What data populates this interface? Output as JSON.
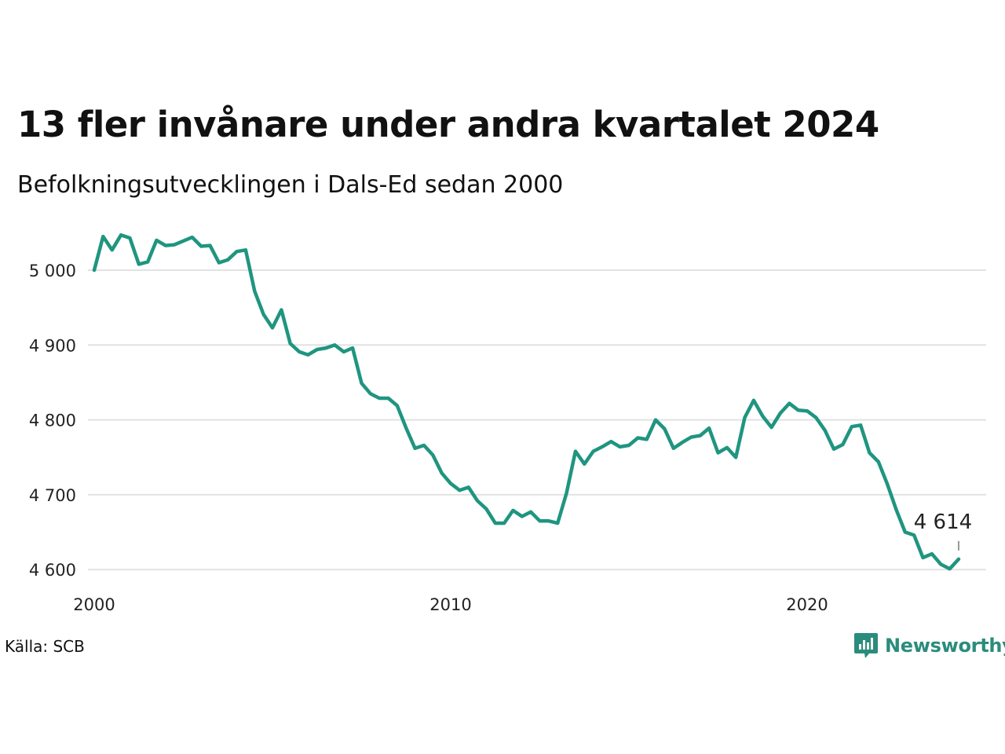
{
  "title": "13 fler invånare under andra kvartalet 2024",
  "subtitle": "Befolkningsutvecklingen i Dals-Ed sedan 2000",
  "source": "Källa: SCB",
  "brand": {
    "name": "Newsworthy",
    "icon": "newsworthy-logo-icon",
    "color": "#2b8c7c"
  },
  "chart_data": {
    "type": "line",
    "title": "13 fler invånare under andra kvartalet 2024",
    "subtitle": "Befolkningsutvecklingen i Dals-Ed sedan 2000",
    "xlabel": "",
    "ylabel": "",
    "xlim": [
      2000,
      2025
    ],
    "ylim": [
      4590,
      5060
    ],
    "x_ticks": [
      2000,
      2010,
      2020
    ],
    "x_tick_labels": [
      "2000",
      "2010",
      "2020"
    ],
    "y_ticks": [
      4600,
      4700,
      4800,
      4900,
      5000
    ],
    "y_tick_labels": [
      "4 600",
      "4 700",
      "4 800",
      "4 900",
      "5 000"
    ],
    "grid": "horizontal",
    "line_color": "#1f9580",
    "x_start": 2000.0,
    "x_step": 0.25,
    "values": [
      5000,
      5045,
      5027,
      5047,
      5043,
      5008,
      5011,
      5040,
      5033,
      5034,
      5039,
      5044,
      5032,
      5033,
      5010,
      5014,
      5025,
      5027,
      4972,
      4941,
      4923,
      4947,
      4902,
      4891,
      4887,
      4894,
      4896,
      4900,
      4891,
      4896,
      4849,
      4835,
      4829,
      4829,
      4819,
      4789,
      4762,
      4766,
      4753,
      4729,
      4715,
      4706,
      4710,
      4692,
      4681,
      4662,
      4662,
      4679,
      4671,
      4677,
      4665,
      4665,
      4662,
      4702,
      4758,
      4741,
      4758,
      4764,
      4771,
      4764,
      4766,
      4776,
      4774,
      4800,
      4788,
      4762,
      4770,
      4777,
      4779,
      4789,
      4756,
      4763,
      4750,
      4803,
      4826,
      4805,
      4790,
      4809,
      4822,
      4813,
      4812,
      4803,
      4786,
      4761,
      4767,
      4791,
      4793,
      4756,
      4744,
      4714,
      4680,
      4650,
      4646,
      4616,
      4621,
      4607,
      4601,
      4614
    ],
    "last_value_label": "4 614"
  }
}
